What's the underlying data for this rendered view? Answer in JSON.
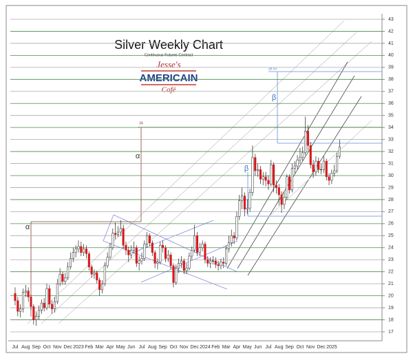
{
  "chart_data": {
    "type": "candlestick",
    "title": "Silver Weekly Chart",
    "subtitle": "Continuous Futures Contract",
    "logo": [
      "Jesse's",
      "AMERICAIN",
      "Café"
    ],
    "annotations": [
      "α",
      "α",
      "β",
      "β",
      "34",
      "38.50"
    ],
    "categories": [
      "Jul",
      null,
      null,
      null,
      "Aug",
      null,
      null,
      null,
      "Sep",
      null,
      null,
      null,
      "Oct",
      null,
      null,
      null,
      "Nov",
      null,
      null,
      null,
      "Dec",
      null,
      null,
      null,
      "2023",
      null,
      null,
      null,
      "Feb",
      null,
      null,
      null,
      "Mar",
      null,
      null,
      null,
      "Apr",
      null,
      null,
      null,
      "May",
      null,
      null,
      null,
      "Jun",
      null,
      null,
      null,
      "Jul",
      null,
      null,
      null,
      "Aug",
      null,
      null,
      null,
      "Sep",
      null,
      null,
      null,
      "Oct",
      null,
      null,
      null,
      "Nov",
      null,
      null,
      null,
      "Dec",
      null,
      null,
      null,
      "2024",
      null,
      null,
      null,
      "Feb",
      null,
      null,
      null,
      "Mar",
      null,
      null,
      null,
      "Apr",
      null,
      null,
      null,
      "May",
      null,
      null,
      null,
      "Jun",
      null,
      null,
      null,
      "Jul",
      null,
      null,
      null,
      "Aug",
      null,
      null,
      null,
      "Sep",
      null,
      null,
      null,
      "Oct",
      null,
      null,
      null,
      "Nov",
      null,
      null,
      null,
      "Dec",
      null,
      null,
      null,
      "2025",
      null,
      null,
      null
    ],
    "open": [
      20.2,
      19.6,
      18.7,
      18.9,
      20.3,
      20.4,
      19.9,
      19.1,
      18.0,
      18.3,
      18.8,
      19.4,
      19.0,
      20.6,
      19.3,
      18.9,
      19.5,
      21.0,
      21.8,
      21.2,
      21.5,
      22.4,
      23.1,
      23.6,
      23.9,
      24.1,
      23.6,
      23.9,
      23.5,
      22.4,
      21.8,
      21.9,
      21.3,
      20.5,
      21.0,
      22.5,
      23.2,
      24.0,
      25.2,
      25.1,
      25.3,
      25.6,
      24.2,
      23.8,
      23.4,
      23.8,
      24.0,
      22.7,
      22.9,
      23.1,
      24.3,
      25.0,
      24.4,
      23.6,
      22.7,
      22.8,
      24.2,
      24.0,
      23.1,
      23.4,
      22.5,
      21.1,
      22.3,
      22.7,
      22.9,
      22.1,
      22.3,
      23.3,
      23.8,
      25.0,
      23.6,
      24.0,
      24.3,
      23.0,
      22.7,
      22.9,
      22.9,
      22.6,
      22.5,
      22.8,
      22.7,
      23.9,
      24.4,
      25.0,
      24.8,
      26.6,
      27.9,
      28.3,
      27.2,
      27.3,
      28.6,
      31.5,
      30.4,
      30.5,
      29.7,
      29.9,
      29.6,
      29.3,
      30.9,
      29.2,
      29.0,
      28.4,
      27.6,
      28.2,
      29.9,
      28.8,
      30.6,
      30.8,
      31.3,
      31.5,
      31.9,
      33.7,
      32.5,
      30.9,
      30.3,
      31.2,
      30.5,
      30.5,
      31.2,
      29.9,
      29.6,
      30.2,
      30.4,
      31.6
    ],
    "high": [
      20.7,
      19.9,
      19.3,
      20.6,
      20.9,
      20.7,
      20.1,
      19.3,
      18.7,
      19.2,
      19.7,
      19.8,
      21.0,
      20.9,
      19.6,
      19.9,
      21.4,
      22.3,
      22.0,
      21.9,
      22.8,
      23.6,
      24.0,
      24.2,
      24.6,
      24.5,
      24.3,
      24.2,
      23.7,
      22.6,
      22.2,
      22.1,
      21.5,
      21.3,
      22.8,
      23.6,
      24.4,
      25.6,
      26.1,
      25.8,
      26.3,
      25.9,
      24.5,
      24.1,
      24.2,
      24.5,
      24.2,
      23.3,
      23.6,
      24.6,
      25.3,
      25.2,
      24.6,
      23.8,
      23.1,
      24.5,
      24.6,
      24.2,
      23.8,
      23.6,
      22.7,
      22.6,
      23.1,
      23.3,
      23.1,
      22.7,
      23.6,
      24.1,
      25.9,
      25.3,
      24.4,
      24.6,
      24.5,
      23.3,
      23.2,
      23.3,
      23.2,
      22.9,
      23.1,
      23.2,
      24.2,
      25.0,
      25.5,
      25.3,
      27.0,
      28.4,
      29.0,
      28.6,
      28.0,
      28.9,
      32.5,
      31.8,
      31.0,
      30.8,
      30.3,
      30.3,
      30.0,
      31.3,
      31.1,
      29.6,
      29.3,
      28.7,
      28.6,
      30.1,
      30.1,
      31.0,
      31.2,
      31.7,
      32.3,
      32.4,
      34.9,
      34.2,
      32.8,
      31.3,
      31.6,
      31.5,
      31.0,
      31.6,
      31.4,
      30.2,
      30.5,
      30.9,
      31.9,
      33.0
    ],
    "low": [
      19.2,
      18.3,
      18.2,
      18.6,
      19.9,
      19.5,
      18.8,
      17.6,
      17.5,
      18.0,
      18.5,
      18.7,
      18.8,
      19.0,
      18.5,
      18.6,
      19.3,
      20.8,
      20.9,
      20.9,
      21.3,
      22.2,
      22.8,
      23.2,
      23.6,
      23.3,
      23.3,
      23.1,
      22.1,
      21.5,
      21.4,
      21.0,
      20.0,
      20.2,
      20.8,
      22.3,
      23.0,
      23.8,
      24.7,
      24.9,
      25.0,
      23.9,
      23.4,
      22.8,
      23.1,
      23.5,
      22.4,
      22.1,
      22.6,
      22.9,
      24.0,
      24.1,
      23.3,
      22.3,
      22.2,
      22.6,
      23.6,
      22.8,
      22.8,
      22.2,
      20.7,
      20.9,
      21.9,
      22.3,
      21.8,
      21.8,
      22.1,
      23.0,
      23.6,
      23.3,
      23.3,
      23.7,
      22.7,
      22.4,
      22.3,
      22.6,
      22.3,
      22.1,
      22.2,
      22.3,
      22.5,
      23.6,
      24.1,
      24.3,
      24.6,
      26.3,
      27.2,
      26.6,
      26.8,
      27.0,
      28.3,
      30.0,
      29.9,
      29.3,
      29.2,
      29.1,
      28.8,
      29.1,
      28.6,
      28.5,
      27.5,
      26.9,
      27.2,
      28.0,
      28.5,
      28.6,
      30.2,
      30.5,
      31.0,
      31.2,
      31.7,
      32.1,
      30.6,
      29.8,
      30.0,
      30.2,
      30.1,
      30.2,
      29.6,
      29.2,
      29.3,
      29.9,
      30.2,
      31.4
    ],
    "close": [
      19.6,
      18.7,
      18.9,
      20.3,
      20.4,
      19.9,
      19.1,
      18.0,
      18.3,
      18.8,
      19.4,
      19.0,
      20.6,
      19.3,
      18.9,
      19.5,
      21.0,
      21.8,
      21.2,
      21.5,
      22.4,
      23.1,
      23.6,
      23.9,
      24.1,
      23.6,
      23.9,
      23.5,
      22.4,
      21.8,
      21.9,
      21.3,
      20.5,
      21.0,
      22.5,
      23.2,
      24.0,
      25.2,
      25.1,
      25.3,
      25.6,
      24.2,
      23.8,
      23.4,
      23.8,
      24.0,
      22.7,
      22.9,
      23.1,
      24.3,
      25.0,
      24.4,
      23.6,
      22.7,
      22.8,
      24.2,
      24.0,
      23.1,
      23.4,
      22.5,
      21.1,
      22.3,
      22.7,
      22.9,
      22.1,
      22.3,
      23.3,
      23.8,
      25.0,
      23.6,
      24.0,
      24.3,
      23.0,
      22.7,
      22.9,
      22.9,
      22.6,
      22.5,
      22.8,
      22.7,
      23.9,
      24.4,
      25.0,
      24.8,
      26.6,
      27.9,
      28.3,
      27.2,
      27.3,
      28.6,
      31.5,
      30.4,
      30.5,
      29.7,
      29.9,
      29.6,
      29.3,
      30.9,
      29.2,
      29.0,
      28.4,
      27.6,
      28.2,
      29.9,
      28.8,
      30.6,
      30.8,
      31.3,
      31.5,
      31.9,
      33.7,
      32.5,
      30.9,
      30.3,
      31.2,
      30.5,
      30.5,
      31.2,
      29.9,
      29.6,
      30.2,
      30.4,
      31.6,
      32.4
    ],
    "up_color": "#ffffff",
    "down_color": "#d7191c",
    "wick_color": "#222222",
    "ylim": [
      17,
      43
    ],
    "yticks": [
      17,
      18,
      19,
      20,
      21,
      22,
      23,
      24,
      25,
      26,
      27,
      28,
      29,
      30,
      31,
      32,
      33,
      34,
      35,
      36,
      37,
      38,
      39,
      40,
      41,
      42,
      43
    ],
    "grid": true,
    "grid_colors": [
      "#a8a8a8",
      "#4a8a4a"
    ]
  }
}
